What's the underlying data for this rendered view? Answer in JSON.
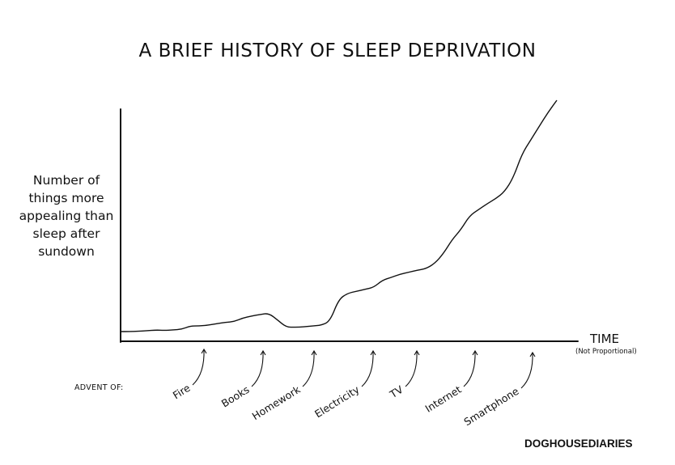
{
  "chart_data": {
    "type": "line",
    "title": "A BRIEF HISTORY OF SLEEP DEPRIVATION",
    "ylabel": "Number of things more appealing than sleep after sundown",
    "xlabel": "TIME",
    "xlabel_note": "(Not Proportional)",
    "grid": false,
    "legend": "none",
    "annotations_prefix": "ADVENT OF:",
    "events": [
      "Fire",
      "Books",
      "Homework",
      "Electricity",
      "TV",
      "Internet",
      "Smartphone"
    ],
    "series": [
      {
        "x": [
          0,
          2,
          4,
          6,
          8,
          10,
          12,
          14,
          16,
          18,
          20,
          22,
          24,
          26,
          28,
          30,
          32,
          34,
          36,
          38,
          40,
          42,
          44,
          46,
          48,
          50,
          52,
          54,
          56,
          58,
          60,
          62,
          64,
          66,
          68,
          70,
          72,
          74,
          76,
          78,
          80,
          82,
          84,
          86,
          88,
          90,
          92,
          94,
          96,
          98,
          100
        ],
        "y": [
          0.4,
          0.4,
          0.5,
          0.6,
          0.8,
          0.7,
          0.8,
          1.0,
          1.8,
          1.8,
          2.0,
          2.4,
          2.7,
          2.9,
          3.8,
          4.3,
          4.7,
          5.0,
          3.3,
          1.5,
          1.5,
          1.6,
          1.8,
          2.0,
          3.0,
          8.5,
          10.0,
          10.5,
          11.0,
          11.5,
          13.3,
          14.0,
          14.8,
          15.3,
          15.8,
          16.2,
          17.5,
          20.0,
          23.5,
          26.0,
          29.5,
          31.0,
          32.5,
          33.8,
          35.5,
          39.0,
          45.0,
          48.5,
          52.0,
          55.5,
          58.5
        ]
      }
    ],
    "xlim": [
      0,
      100
    ],
    "ylim": [
      0,
      58.5
    ]
  },
  "credit": "DOGHOUSEDIARIES"
}
